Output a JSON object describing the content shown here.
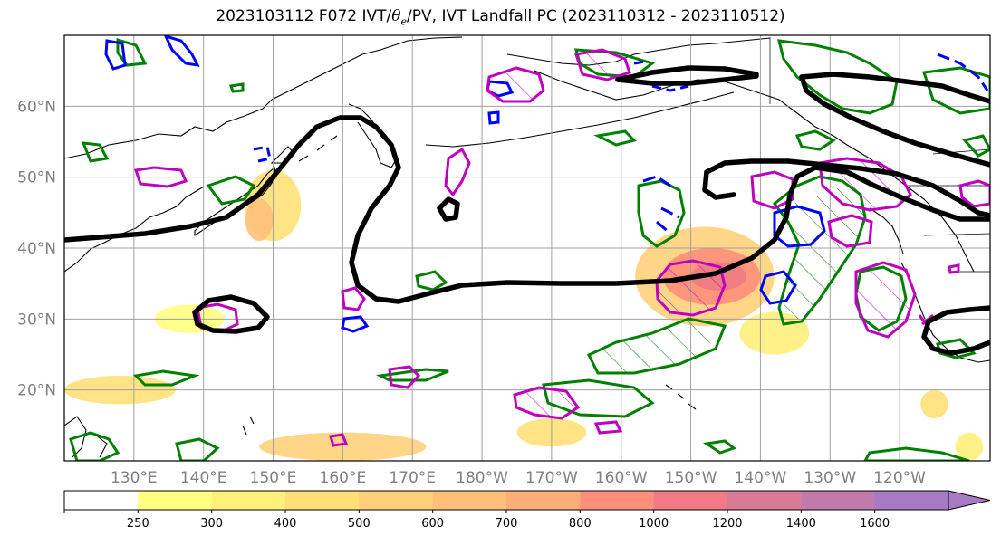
{
  "title": {
    "prefix": "2023103112 F072 IVT/",
    "theta_symbol": "θ",
    "theta_sub": "e",
    "suffix": "/PV, IVT Landfall PC (2023110312 - 2023110512)"
  },
  "map": {
    "projection": "plate-carree",
    "lon_range": [
      120,
      253
    ],
    "lat_range": [
      10,
      70
    ],
    "lat_ticks": [
      {
        "value": 20,
        "label": "20°N"
      },
      {
        "value": 30,
        "label": "30°N"
      },
      {
        "value": 40,
        "label": "40°N"
      },
      {
        "value": 50,
        "label": "50°N"
      },
      {
        "value": 60,
        "label": "60°N"
      }
    ],
    "lon_ticks": [
      {
        "value": 130,
        "label": "130°E"
      },
      {
        "value": 140,
        "label": "140°E"
      },
      {
        "value": 150,
        "label": "150°E"
      },
      {
        "value": 160,
        "label": "160°E"
      },
      {
        "value": 170,
        "label": "170°E"
      },
      {
        "value": 180,
        "label": "180°W"
      },
      {
        "value": 190,
        "label": "170°W"
      },
      {
        "value": 200,
        "label": "160°W"
      },
      {
        "value": 210,
        "label": "150°W"
      },
      {
        "value": 220,
        "label": "140°W"
      },
      {
        "value": 230,
        "label": "130°W"
      },
      {
        "value": 240,
        "label": "120°W"
      }
    ],
    "gridlines": true,
    "layers": {
      "ivt_fill": "IVT shaded",
      "pv_contour_color": "#000000",
      "theta_e_contour_color": "#0000ff",
      "ivt_pc_contour_color": "#008000",
      "landfall_contour_color": "#c000c0"
    }
  },
  "colorbar": {
    "levels": [
      250,
      300,
      400,
      500,
      600,
      700,
      800,
      1000,
      1200,
      1400,
      1600
    ],
    "colors": [
      "#ffff80",
      "#fff07a",
      "#ffe078",
      "#ffd07a",
      "#ffbf7a",
      "#ffad78",
      "#ff8f7a",
      "#f07a85",
      "#d97a96",
      "#c07aac",
      "#a87ac4"
    ],
    "extend": "max"
  },
  "ivt_blobs": [
    {
      "lon": 212,
      "lat": 36,
      "rx": 10,
      "ry": 7,
      "level": 500
    },
    {
      "lon": 213,
      "lat": 36,
      "rx": 7,
      "ry": 4,
      "level": 800
    },
    {
      "lon": 214,
      "lat": 36,
      "rx": 4,
      "ry": 2,
      "level": 1000
    },
    {
      "lon": 150,
      "lat": 46,
      "rx": 4,
      "ry": 5,
      "level": 400
    },
    {
      "lon": 148,
      "lat": 44,
      "rx": 2,
      "ry": 3,
      "level": 600
    },
    {
      "lon": 138,
      "lat": 30,
      "rx": 5,
      "ry": 2,
      "level": 250
    },
    {
      "lon": 128,
      "lat": 20,
      "rx": 8,
      "ry": 2,
      "level": 400
    },
    {
      "lon": 160,
      "lat": 12,
      "rx": 12,
      "ry": 2,
      "level": 500
    },
    {
      "lon": 190,
      "lat": 14,
      "rx": 5,
      "ry": 2,
      "level": 400
    },
    {
      "lon": 222,
      "lat": 28,
      "rx": 5,
      "ry": 3,
      "level": 300
    },
    {
      "lon": 245,
      "lat": 18,
      "rx": 2,
      "ry": 2,
      "level": 400
    },
    {
      "lon": 250,
      "lat": 12,
      "rx": 2,
      "ry": 2,
      "level": 300
    }
  ]
}
